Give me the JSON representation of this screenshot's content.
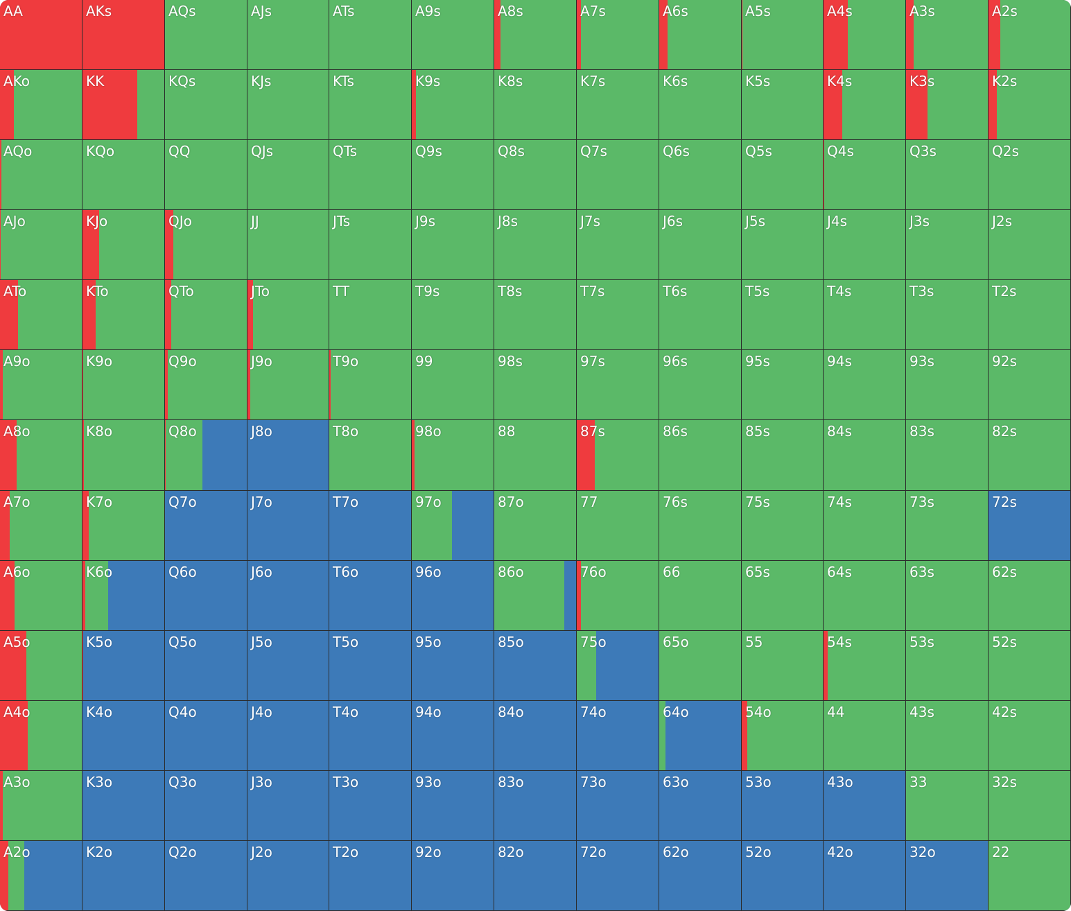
{
  "colors": {
    "raise": "#ef3b3e",
    "call": "#5bb968",
    "fold": "#3d7ab8"
  },
  "chart_data": {
    "type": "heatmap",
    "title": "",
    "xlabel": "",
    "ylabel": "",
    "segment_order": [
      "raise",
      "call",
      "fold"
    ],
    "grid": [
      [
        [
          "AA",
          1,
          0,
          0
        ],
        [
          "AKs",
          1,
          0,
          0
        ],
        [
          "AQs",
          0,
          1,
          0
        ],
        [
          "AJs",
          0,
          1,
          0
        ],
        [
          "ATs",
          0,
          1,
          0
        ],
        [
          "A9s",
          0,
          1,
          0
        ],
        [
          "A8s",
          0.08,
          0.92,
          0
        ],
        [
          "A7s",
          0.05,
          0.95,
          0
        ],
        [
          "A6s",
          0.1,
          0.9,
          0
        ],
        [
          "A5s",
          0.01,
          0.99,
          0
        ],
        [
          "A4s",
          0.3,
          0.7,
          0
        ],
        [
          "A3s",
          0.09,
          0.91,
          0
        ],
        [
          "A2s",
          0.14,
          0.86,
          0
        ]
      ],
      [
        [
          "AKo",
          0.17,
          0.83,
          0
        ],
        [
          "KK",
          0.67,
          0.33,
          0
        ],
        [
          "KQs",
          0,
          1,
          0
        ],
        [
          "KJs",
          0,
          1,
          0
        ],
        [
          "KTs",
          0,
          1,
          0
        ],
        [
          "K9s",
          0.05,
          0.95,
          0
        ],
        [
          "K8s",
          0,
          1,
          0
        ],
        [
          "K7s",
          0,
          1,
          0
        ],
        [
          "K6s",
          0,
          1,
          0
        ],
        [
          "K5s",
          0,
          1,
          0
        ],
        [
          "K4s",
          0.23,
          0.77,
          0
        ],
        [
          "K3s",
          0.26,
          0.74,
          0
        ],
        [
          "K2s",
          0.1,
          0.9,
          0
        ]
      ],
      [
        [
          "AQo",
          0.02,
          0.98,
          0
        ],
        [
          "KQo",
          0,
          1,
          0
        ],
        [
          "QQ",
          0,
          1,
          0
        ],
        [
          "QJs",
          0,
          1,
          0
        ],
        [
          "QTs",
          0,
          1,
          0
        ],
        [
          "Q9s",
          0,
          1,
          0
        ],
        [
          "Q8s",
          0,
          1,
          0
        ],
        [
          "Q7s",
          0,
          1,
          0
        ],
        [
          "Q6s",
          0,
          1,
          0
        ],
        [
          "Q5s",
          0,
          1,
          0
        ],
        [
          "Q4s",
          0.01,
          0.99,
          0
        ],
        [
          "Q3s",
          0,
          1,
          0
        ],
        [
          "Q2s",
          0,
          1,
          0
        ]
      ],
      [
        [
          "AJo",
          0.01,
          0.99,
          0
        ],
        [
          "KJo",
          0.2,
          0.8,
          0
        ],
        [
          "QJo",
          0.1,
          0.9,
          0
        ],
        [
          "JJ",
          0,
          1,
          0
        ],
        [
          "JTs",
          0,
          1,
          0
        ],
        [
          "J9s",
          0,
          1,
          0
        ],
        [
          "J8s",
          0,
          1,
          0
        ],
        [
          "J7s",
          0,
          1,
          0
        ],
        [
          "J6s",
          0,
          1,
          0
        ],
        [
          "J5s",
          0,
          1,
          0
        ],
        [
          "J4s",
          0,
          1,
          0
        ],
        [
          "J3s",
          0,
          1,
          0
        ],
        [
          "J2s",
          0,
          1,
          0
        ]
      ],
      [
        [
          "ATo",
          0.22,
          0.78,
          0
        ],
        [
          "KTo",
          0.16,
          0.84,
          0
        ],
        [
          "QTo",
          0.08,
          0.92,
          0
        ],
        [
          "JTo",
          0.07,
          0.93,
          0
        ],
        [
          "TT",
          0,
          1,
          0
        ],
        [
          "T9s",
          0,
          1,
          0
        ],
        [
          "T8s",
          0,
          1,
          0
        ],
        [
          "T7s",
          0,
          1,
          0
        ],
        [
          "T6s",
          0,
          1,
          0
        ],
        [
          "T5s",
          0,
          1,
          0
        ],
        [
          "T4s",
          0,
          1,
          0
        ],
        [
          "T3s",
          0,
          1,
          0
        ],
        [
          "T2s",
          0,
          1,
          0
        ]
      ],
      [
        [
          "A9o",
          0.03,
          0.97,
          0
        ],
        [
          "K9o",
          0.01,
          0.99,
          0
        ],
        [
          "Q9o",
          0.03,
          0.97,
          0
        ],
        [
          "J9o",
          0.03,
          0.97,
          0
        ],
        [
          "T9o",
          0.02,
          0.98,
          0
        ],
        [
          "99",
          0,
          1,
          0
        ],
        [
          "98s",
          0,
          1,
          0
        ],
        [
          "97s",
          0,
          1,
          0
        ],
        [
          "96s",
          0,
          1,
          0
        ],
        [
          "95s",
          0,
          1,
          0
        ],
        [
          "94s",
          0,
          1,
          0
        ],
        [
          "93s",
          0,
          1,
          0
        ],
        [
          "92s",
          0,
          1,
          0
        ]
      ],
      [
        [
          "A8o",
          0.2,
          0.8,
          0
        ],
        [
          "K8o",
          0.02,
          0.98,
          0
        ],
        [
          "Q8o",
          0.01,
          0.45,
          0.54
        ],
        [
          "J8o",
          0,
          0,
          1
        ],
        [
          "T8o",
          0,
          1,
          0
        ],
        [
          "98o",
          0.03,
          0.97,
          0
        ],
        [
          "88",
          0,
          1,
          0
        ],
        [
          "87s",
          0.22,
          0.78,
          0
        ],
        [
          "86s",
          0,
          1,
          0
        ],
        [
          "85s",
          0,
          1,
          0
        ],
        [
          "84s",
          0,
          1,
          0
        ],
        [
          "83s",
          0,
          1,
          0
        ],
        [
          "82s",
          0,
          1,
          0
        ]
      ],
      [
        [
          "A7o",
          0.12,
          0.88,
          0
        ],
        [
          "K7o",
          0.08,
          0.92,
          0
        ],
        [
          "Q7o",
          0,
          0,
          1
        ],
        [
          "J7o",
          0,
          0,
          1
        ],
        [
          "T7o",
          0,
          0,
          1
        ],
        [
          "97o",
          0,
          0.49,
          0.51
        ],
        [
          "87o",
          0,
          1,
          0
        ],
        [
          "77",
          0,
          1,
          0
        ],
        [
          "76s",
          0,
          1,
          0
        ],
        [
          "75s",
          0,
          1,
          0
        ],
        [
          "74s",
          0,
          1,
          0
        ],
        [
          "73s",
          0,
          1,
          0
        ],
        [
          "72s",
          0,
          0,
          1
        ]
      ],
      [
        [
          "A6o",
          0.18,
          0.82,
          0
        ],
        [
          "K6o",
          0.03,
          0.28,
          0.69
        ],
        [
          "Q6o",
          0,
          0,
          1
        ],
        [
          "J6o",
          0,
          0,
          1
        ],
        [
          "T6o",
          0,
          0,
          1
        ],
        [
          "96o",
          0,
          0,
          1
        ],
        [
          "86o",
          0,
          0.86,
          0.14
        ],
        [
          "76o",
          0.05,
          0.95,
          0
        ],
        [
          "66",
          0,
          1,
          0
        ],
        [
          "65s",
          0,
          1,
          0
        ],
        [
          "64s",
          0,
          1,
          0
        ],
        [
          "63s",
          0,
          1,
          0
        ],
        [
          "62s",
          0,
          1,
          0
        ]
      ],
      [
        [
          "A5o",
          0.32,
          0.68,
          0
        ],
        [
          "K5o",
          0.01,
          0,
          0.99
        ],
        [
          "Q5o",
          0,
          0,
          1
        ],
        [
          "J5o",
          0,
          0,
          1
        ],
        [
          "T5o",
          0,
          0,
          1
        ],
        [
          "95o",
          0,
          0,
          1
        ],
        [
          "85o",
          0,
          0,
          1
        ],
        [
          "75o",
          0,
          0.24,
          0.76
        ],
        [
          "65o",
          0,
          1,
          0
        ],
        [
          "55",
          0,
          1,
          0
        ],
        [
          "54s",
          0.05,
          0.95,
          0
        ],
        [
          "53s",
          0,
          1,
          0
        ],
        [
          "52s",
          0,
          1,
          0
        ]
      ],
      [
        [
          "A4o",
          0.34,
          0.66,
          0
        ],
        [
          "K4o",
          0,
          0,
          1
        ],
        [
          "Q4o",
          0,
          0,
          1
        ],
        [
          "J4o",
          0,
          0,
          1
        ],
        [
          "T4o",
          0,
          0,
          1
        ],
        [
          "94o",
          0,
          0,
          1
        ],
        [
          "84o",
          0,
          0,
          1
        ],
        [
          "74o",
          0,
          0,
          1
        ],
        [
          "64o",
          0,
          0.08,
          0.92
        ],
        [
          "54o",
          0.07,
          0.93,
          0
        ],
        [
          "44",
          0,
          1,
          0
        ],
        [
          "43s",
          0,
          1,
          0
        ],
        [
          "42s",
          0,
          1,
          0
        ]
      ],
      [
        [
          "A3o",
          0.03,
          0.97,
          0
        ],
        [
          "K3o",
          0,
          0,
          1
        ],
        [
          "Q3o",
          0,
          0,
          1
        ],
        [
          "J3o",
          0,
          0,
          1
        ],
        [
          "T3o",
          0,
          0,
          1
        ],
        [
          "93o",
          0,
          0,
          1
        ],
        [
          "83o",
          0,
          0,
          1
        ],
        [
          "73o",
          0,
          0,
          1
        ],
        [
          "63o",
          0,
          0,
          1
        ],
        [
          "53o",
          0,
          0,
          1
        ],
        [
          "43o",
          0,
          0,
          1
        ],
        [
          "33",
          0,
          1,
          0
        ],
        [
          "32s",
          0,
          1,
          0
        ]
      ],
      [
        [
          "A2o",
          0.1,
          0.2,
          0.7
        ],
        [
          "K2o",
          0,
          0,
          1
        ],
        [
          "Q2o",
          0,
          0,
          1
        ],
        [
          "J2o",
          0,
          0,
          1
        ],
        [
          "T2o",
          0,
          0,
          1
        ],
        [
          "92o",
          0,
          0,
          1
        ],
        [
          "82o",
          0,
          0,
          1
        ],
        [
          "72o",
          0,
          0,
          1
        ],
        [
          "62o",
          0,
          0,
          1
        ],
        [
          "52o",
          0,
          0,
          1
        ],
        [
          "42o",
          0,
          0,
          1
        ],
        [
          "32o",
          0,
          0,
          1
        ],
        [
          "22",
          0,
          1,
          0
        ]
      ]
    ]
  }
}
